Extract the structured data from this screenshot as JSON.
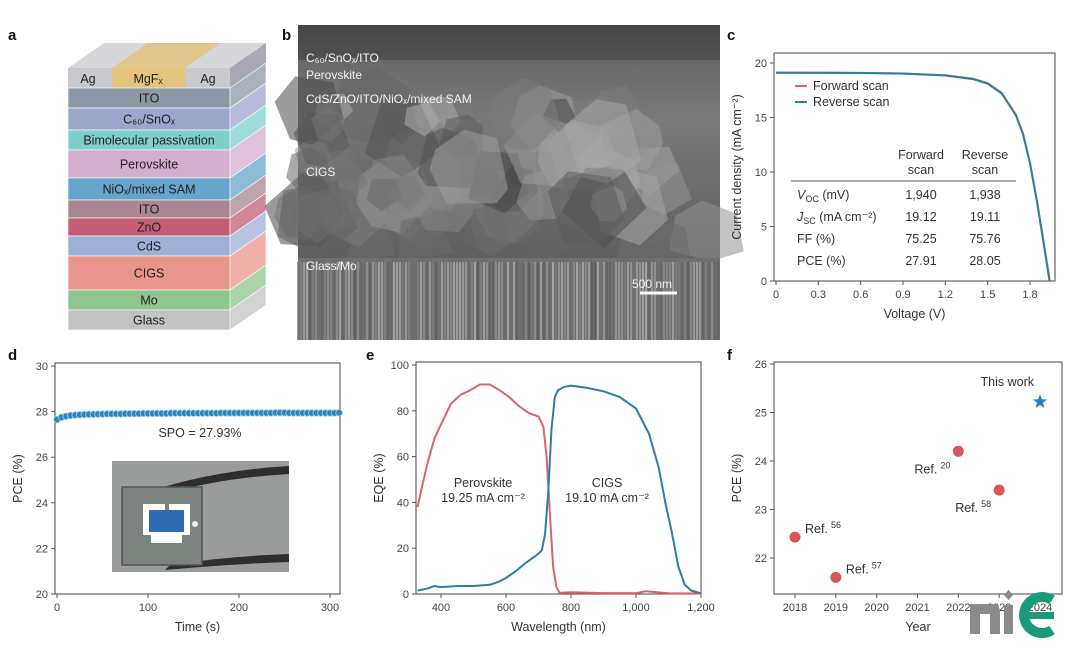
{
  "panels": {
    "a": "a",
    "b": "b",
    "c": "c",
    "d": "d",
    "e": "e",
    "f": "f"
  },
  "stack": {
    "top": {
      "left": "Ag",
      "center": "MgFₓ",
      "right": "Ag",
      "colors": {
        "ag": "#c9c9cd",
        "mgf": "#e4c37a"
      }
    },
    "layers": [
      {
        "label": "ITO",
        "color": "#8d98a6"
      },
      {
        "label": "C₆₀/SnOₓ",
        "color": "#9ea6cc"
      },
      {
        "label": "Bimolecular passivation",
        "color": "#7fcfcb"
      },
      {
        "label": "Perovskite",
        "color": "#d3aecd"
      },
      {
        "label": "NiOₓ/mixed SAM",
        "color": "#67a5cc"
      },
      {
        "label": "ITO",
        "color": "#a88792"
      },
      {
        "label": "ZnO",
        "color": "#c35d78"
      },
      {
        "label": "CdS",
        "color": "#9db0d8"
      },
      {
        "label": "CIGS",
        "color": "#e8968c"
      },
      {
        "label": "Mo",
        "color": "#8fc690"
      },
      {
        "label": "Glass",
        "color": "#c3c3c3"
      }
    ]
  },
  "sem": {
    "labels": [
      "C₆₀/SnOₓ/ITO",
      "Perovskite",
      "CdS/ZnO/ITO/NiOₓ/mixed SAM",
      "CIGS",
      "Glass/Mo"
    ],
    "scale_bar": "500 nm"
  },
  "logo": "nie",
  "chart_data": [
    {
      "panel": "c",
      "type": "line",
      "title": "",
      "xlabel": "Voltage (V)",
      "ylabel": "Current density (mA cm⁻²)",
      "xlim": [
        0,
        1.95
      ],
      "ylim": [
        0,
        20
      ],
      "xticks": [
        "0",
        "0.3",
        "0.6",
        "0.9",
        "1.2",
        "1.5",
        "1.8"
      ],
      "xtick_values": [
        0,
        0.3,
        0.6,
        0.9,
        1.2,
        1.5,
        1.8
      ],
      "yticks": [
        "0",
        "5",
        "10",
        "15",
        "20"
      ],
      "ytick_values": [
        0,
        5,
        10,
        15,
        20
      ],
      "legend": "top-left",
      "series": [
        {
          "name": "Forward scan",
          "color": "#d9646a",
          "x": [
            0,
            0.3,
            0.6,
            0.9,
            1.2,
            1.4,
            1.5,
            1.6,
            1.7,
            1.75,
            1.8,
            1.85,
            1.9,
            1.94
          ],
          "y": [
            19.12,
            19.11,
            19.09,
            19.04,
            18.88,
            18.55,
            18.15,
            17.25,
            15.25,
            13.55,
            10.85,
            7.25,
            3.3,
            0
          ]
        },
        {
          "name": "Reverse scan",
          "color": "#2a7fa6",
          "x": [
            0,
            0.3,
            0.6,
            0.9,
            1.2,
            1.4,
            1.5,
            1.6,
            1.7,
            1.75,
            1.8,
            1.85,
            1.9,
            1.938
          ],
          "y": [
            19.11,
            19.1,
            19.08,
            19.03,
            18.85,
            18.5,
            18.1,
            17.2,
            15.2,
            13.5,
            10.8,
            7.2,
            3.2,
            0
          ]
        }
      ],
      "table": {
        "columns": [
          "",
          "Forward scan",
          "Reverse scan"
        ],
        "col_line1": [
          "Forward",
          "Reverse"
        ],
        "col_line2": [
          "scan",
          "scan"
        ],
        "rows": [
          {
            "label": "V",
            "sub": "OC",
            "unit": " (mV)",
            "forward": "1,940",
            "reverse": "1,938"
          },
          {
            "label": "J",
            "sub": "SC",
            "unit": " (mA cm⁻²)",
            "forward": "19.12",
            "reverse": "19.11"
          },
          {
            "label": "FF (%)",
            "sub": "",
            "unit": "",
            "forward": "75.25",
            "reverse": "75.76"
          },
          {
            "label": "PCE (%)",
            "sub": "",
            "unit": "",
            "forward": "27.91",
            "reverse": "28.05"
          }
        ]
      }
    },
    {
      "panel": "d",
      "type": "scatter",
      "title": "",
      "xlabel": "Time (s)",
      "ylabel": "PCE (%)",
      "xlim": [
        0,
        310
      ],
      "ylim": [
        20,
        30
      ],
      "xticks": [
        "0",
        "100",
        "200",
        "300"
      ],
      "xtick_values": [
        0,
        100,
        200,
        300
      ],
      "yticks": [
        "20",
        "22",
        "24",
        "26",
        "28",
        "30"
      ],
      "ytick_values": [
        20,
        22,
        24,
        26,
        28,
        30
      ],
      "annotation": "SPO = 27.93%",
      "series": [
        {
          "name": "SPO",
          "color": "#2a86bd",
          "x": [
            0,
            5,
            10,
            15,
            20,
            25,
            30,
            35,
            40,
            45,
            50,
            55,
            60,
            65,
            70,
            75,
            80,
            85,
            90,
            95,
            100,
            105,
            110,
            115,
            120,
            125,
            130,
            135,
            140,
            145,
            150,
            155,
            160,
            165,
            170,
            175,
            180,
            185,
            190,
            195,
            200,
            205,
            210,
            215,
            220,
            225,
            230,
            235,
            240,
            245,
            250,
            255,
            260,
            265,
            270,
            275,
            280,
            285,
            290,
            295,
            300,
            305,
            310
          ],
          "y": [
            27.65,
            27.75,
            27.8,
            27.83,
            27.85,
            27.86,
            27.87,
            27.88,
            27.88,
            27.89,
            27.89,
            27.9,
            27.9,
            27.9,
            27.9,
            27.91,
            27.91,
            27.91,
            27.91,
            27.92,
            27.92,
            27.92,
            27.92,
            27.92,
            27.92,
            27.93,
            27.93,
            27.93,
            27.93,
            27.93,
            27.93,
            27.93,
            27.93,
            27.93,
            27.93,
            27.93,
            27.94,
            27.94,
            27.94,
            27.94,
            27.94,
            27.94,
            27.94,
            27.94,
            27.94,
            27.94,
            27.94,
            27.94,
            27.95,
            27.95,
            27.95,
            27.94,
            27.94,
            27.94,
            27.94,
            27.94,
            27.94,
            27.94,
            27.94,
            27.94,
            27.94,
            27.94,
            27.95
          ]
        }
      ]
    },
    {
      "panel": "e",
      "type": "line",
      "title": "",
      "xlabel": "Wavelength (nm)",
      "ylabel": "EQE (%)",
      "xlim": [
        325,
        1200
      ],
      "ylim": [
        0,
        100
      ],
      "xticks": [
        "400",
        "600",
        "800",
        "1,000",
        "1,200"
      ],
      "xtick_values": [
        400,
        600,
        800,
        1000,
        1200
      ],
      "yticks": [
        "0",
        "20",
        "40",
        "60",
        "80",
        "100"
      ],
      "ytick_values": [
        0,
        20,
        40,
        60,
        80,
        100
      ],
      "series": [
        {
          "name": "Perovskite",
          "label2": "19.25 mA cm⁻²",
          "color": "#d9646a",
          "x": [
            328,
            340,
            360,
            380,
            400,
            430,
            460,
            490,
            520,
            550,
            580,
            610,
            640,
            670,
            700,
            715,
            725,
            735,
            745,
            755,
            765,
            800,
            900,
            1000,
            1030,
            1100,
            1200
          ],
          "y": [
            38,
            46,
            58,
            68,
            74,
            83,
            87,
            89,
            91.5,
            91.5,
            89,
            86,
            82,
            79,
            77.5,
            73,
            60,
            35,
            12,
            3,
            0.5,
            0.8,
            0.4,
            0.4,
            1.2,
            0.3,
            0.2
          ]
        },
        {
          "name": "CIGS",
          "label2": "19.10 mA cm⁻²",
          "color": "#2a7fa6",
          "x": [
            328,
            360,
            380,
            400,
            450,
            500,
            550,
            580,
            600,
            630,
            660,
            690,
            710,
            720,
            730,
            740,
            750,
            760,
            780,
            800,
            850,
            900,
            950,
            1000,
            1040,
            1070,
            1090,
            1110,
            1130,
            1150,
            1170,
            1200
          ],
          "y": [
            1.5,
            2.5,
            3.5,
            3,
            3.5,
            3.5,
            4,
            5.5,
            7,
            10,
            13.5,
            16.5,
            19,
            26,
            45,
            72,
            86,
            89,
            90.5,
            91,
            90,
            88.5,
            86,
            81,
            70,
            55,
            40,
            27,
            12,
            4,
            1.5,
            0.3
          ]
        }
      ]
    },
    {
      "panel": "f",
      "type": "scatter",
      "title": "",
      "xlabel": "Year",
      "ylabel": "PCE (%)",
      "xlim": [
        2017.5,
        2024.2
      ],
      "ylim": [
        21.25,
        26
      ],
      "xticks": [
        "2018",
        "2019",
        "2020",
        "2021",
        "2022",
        "2023",
        "2024"
      ],
      "xtick_values": [
        2018,
        2019,
        2020,
        2021,
        2022,
        2023,
        2024
      ],
      "yticks": [
        "22",
        "23",
        "24",
        "25",
        "26"
      ],
      "ytick_values": [
        22,
        23,
        24,
        25,
        26
      ],
      "points": [
        {
          "x": 2018,
          "y": 22.43,
          "label": "Ref.",
          "ref": "56",
          "marker": "circle",
          "color": "#d9555a"
        },
        {
          "x": 2019,
          "y": 21.6,
          "label": "Ref.",
          "ref": "57",
          "marker": "circle",
          "color": "#d9555a"
        },
        {
          "x": 2022,
          "y": 24.2,
          "label": "Ref.",
          "ref": "20",
          "marker": "circle",
          "color": "#d9555a"
        },
        {
          "x": 2023,
          "y": 23.4,
          "label": "Ref.",
          "ref": "58",
          "marker": "circle",
          "color": "#d9555a"
        },
        {
          "x": 2024,
          "y": 25.22,
          "label": "This work",
          "ref": "",
          "marker": "star",
          "color": "#2a7fb8"
        }
      ]
    }
  ]
}
